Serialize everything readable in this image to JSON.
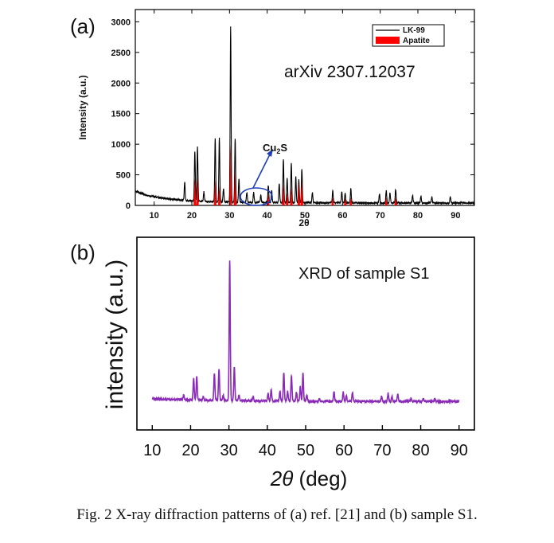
{
  "caption": "Fig. 2 X-ray diffraction patterns of (a) ref. [21] and (b) sample S1.",
  "panel_a": {
    "label": "(a)",
    "annotation": "arXiv 2307.12037",
    "cu2s_main": "Cu",
    "cu2s_sub": "2",
    "cu2s_tail": "S",
    "legend": [
      "LK-99",
      "Apatite"
    ],
    "colors": {
      "lk99": "#000000",
      "apatite": "#ff0000",
      "ellipse": "#1f3fb8"
    }
  },
  "panel_b": {
    "label": "(b)",
    "annotation": "XRD of sample S1",
    "colors": {
      "trace": "#8a2ab8"
    }
  },
  "chart_data": [
    {
      "type": "line",
      "title": "",
      "xlabel": "2θ",
      "ylabel": "Intensity (a.u.)",
      "xlim": [
        5,
        95
      ],
      "ylim": [
        0,
        3200
      ],
      "xticks": [
        10,
        20,
        30,
        40,
        50,
        60,
        70,
        80,
        90
      ],
      "yticks": [
        0,
        500,
        1000,
        1500,
        2000,
        2500,
        3000
      ],
      "legend_position": "top-right",
      "series": [
        {
          "name": "LK-99",
          "baseline": [
            [
              5,
              230
            ],
            [
              8,
              170
            ],
            [
              12,
              120
            ],
            [
              18,
              80
            ],
            [
              25,
              60
            ],
            [
              35,
              50
            ],
            [
              50,
              45
            ],
            [
              70,
              40
            ],
            [
              95,
              40
            ]
          ],
          "peaks": [
            [
              18.1,
              300
            ],
            [
              20.8,
              820
            ],
            [
              21.5,
              880
            ],
            [
              23.2,
              160
            ],
            [
              26.2,
              1050
            ],
            [
              27.3,
              1040
            ],
            [
              28.4,
              220
            ],
            [
              30.3,
              2860
            ],
            [
              31.5,
              1040
            ],
            [
              32.5,
              380
            ],
            [
              34.6,
              160
            ],
            [
              36.4,
              160
            ],
            [
              38.3,
              120
            ],
            [
              40.3,
              280
            ],
            [
              41.2,
              200
            ],
            [
              43.2,
              320
            ],
            [
              44.3,
              720
            ],
            [
              45.3,
              400
            ],
            [
              46.4,
              650
            ],
            [
              47.6,
              420
            ],
            [
              48.4,
              380
            ],
            [
              49.2,
              560
            ],
            [
              52.0,
              160
            ],
            [
              57.4,
              200
            ],
            [
              59.8,
              180
            ],
            [
              60.7,
              150
            ],
            [
              62.2,
              230
            ],
            [
              69.8,
              150
            ],
            [
              71.6,
              200
            ],
            [
              72.6,
              160
            ],
            [
              74.1,
              220
            ],
            [
              78.6,
              120
            ],
            [
              80.8,
              120
            ],
            [
              83.7,
              100
            ],
            [
              88.6,
              100
            ]
          ]
        },
        {
          "name": "Apatite",
          "peaks": [
            [
              20.8,
              450
            ],
            [
              21.5,
              450
            ],
            [
              26.2,
              430
            ],
            [
              27.3,
              330
            ],
            [
              30.3,
              1000
            ],
            [
              31.5,
              560
            ],
            [
              40.3,
              180
            ],
            [
              44.3,
              360
            ],
            [
              45.3,
              200
            ],
            [
              46.4,
              300
            ],
            [
              48.4,
              380
            ],
            [
              49.2,
              400
            ],
            [
              57.4,
              140
            ],
            [
              60.7,
              120
            ],
            [
              62.2,
              130
            ],
            [
              71.6,
              130
            ],
            [
              74.1,
              130
            ]
          ]
        }
      ]
    },
    {
      "type": "line",
      "title": "",
      "xlabel": "2θ (deg)",
      "ylabel": "intensity (a.u.)",
      "xlim": [
        6,
        94
      ],
      "xticks": [
        10,
        20,
        30,
        40,
        50,
        60,
        70,
        80,
        90
      ],
      "legend_position": "none",
      "series": [
        {
          "name": "",
          "x_range": [
            10,
            90
          ],
          "baseline": [
            [
              10,
              150
            ],
            [
              20,
              135
            ],
            [
              30,
              125
            ],
            [
              60,
              115
            ],
            [
              90,
              115
            ]
          ],
          "peaks": [
            [
              18.2,
              60
            ],
            [
              20.8,
              290
            ],
            [
              21.6,
              320
            ],
            [
              23.3,
              50
            ],
            [
              26.2,
              360
            ],
            [
              27.4,
              420
            ],
            [
              28.5,
              70
            ],
            [
              30.2,
              1880
            ],
            [
              31.4,
              460
            ],
            [
              32.6,
              80
            ],
            [
              36.3,
              60
            ],
            [
              40.2,
              100
            ],
            [
              41.0,
              150
            ],
            [
              43.3,
              130
            ],
            [
              44.3,
              380
            ],
            [
              45.3,
              130
            ],
            [
              46.3,
              340
            ],
            [
              47.6,
              120
            ],
            [
              48.6,
              200
            ],
            [
              49.3,
              370
            ],
            [
              50.3,
              80
            ],
            [
              53.6,
              40
            ],
            [
              57.4,
              130
            ],
            [
              59.8,
              130
            ],
            [
              60.6,
              80
            ],
            [
              62.2,
              120
            ],
            [
              69.8,
              70
            ],
            [
              71.5,
              110
            ],
            [
              72.5,
              70
            ],
            [
              74.0,
              100
            ],
            [
              77.5,
              40
            ],
            [
              80.7,
              40
            ],
            [
              83.7,
              40
            ]
          ]
        }
      ]
    }
  ]
}
